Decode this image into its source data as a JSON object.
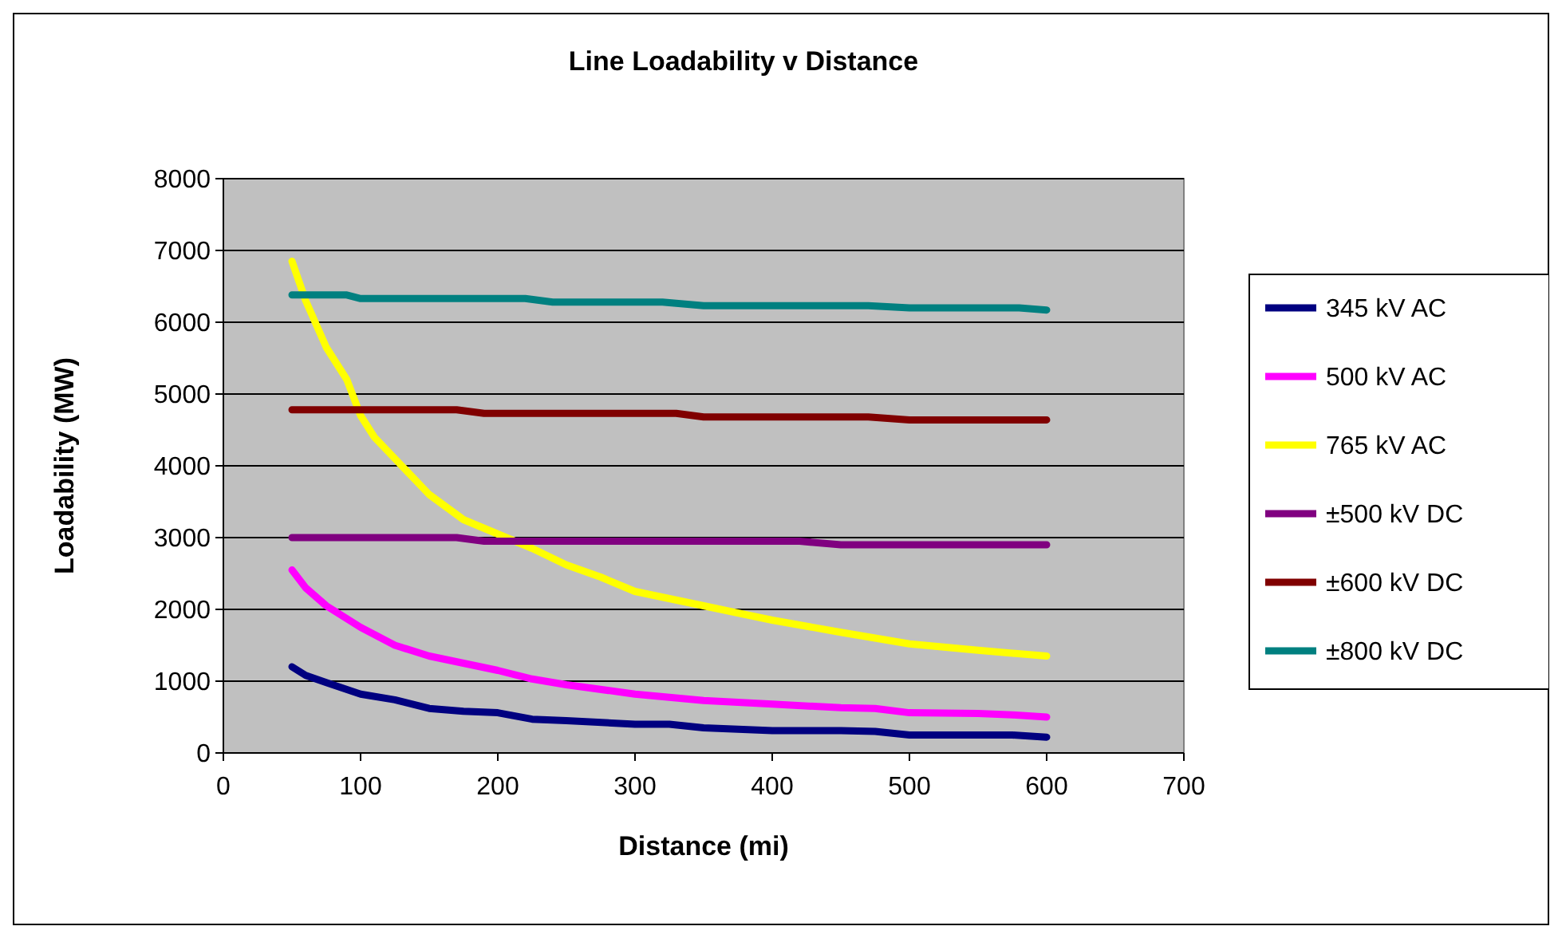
{
  "chart_data": {
    "type": "line",
    "title": "Line Loadability v Distance",
    "xlabel": "Distance (mi)",
    "ylabel": "Loadability (MW)",
    "xlim": [
      0,
      700
    ],
    "xticks": [
      0,
      100,
      200,
      300,
      400,
      500,
      600,
      700
    ],
    "ylim": [
      0,
      8000
    ],
    "yticks": [
      0,
      1000,
      2000,
      3000,
      4000,
      5000,
      6000,
      7000,
      8000
    ],
    "grid": "y",
    "legend": "right",
    "marker": "none",
    "line_style": "solid",
    "series": [
      {
        "name": "345 kV AC",
        "color": "#000080",
        "x": [
          50,
          60,
          75,
          100,
          125,
          150,
          175,
          200,
          225,
          250,
          300,
          325,
          350,
          400,
          450,
          475,
          500,
          550,
          575,
          600
        ],
        "values": [
          1200,
          1080,
          980,
          820,
          740,
          620,
          580,
          560,
          470,
          450,
          400,
          400,
          350,
          310,
          310,
          300,
          250,
          250,
          250,
          220
        ]
      },
      {
        "name": "500 kV AC",
        "color": "#ff00ff",
        "x": [
          50,
          60,
          75,
          100,
          125,
          150,
          175,
          200,
          225,
          250,
          300,
          350,
          400,
          450,
          475,
          500,
          550,
          575,
          600
        ],
        "values": [
          2550,
          2300,
          2050,
          1750,
          1500,
          1350,
          1250,
          1150,
          1030,
          950,
          820,
          730,
          680,
          630,
          620,
          560,
          550,
          530,
          500
        ]
      },
      {
        "name": "765 kV AC",
        "color": "#ffff00",
        "x": [
          50,
          60,
          75,
          90,
          100,
          110,
          125,
          150,
          175,
          200,
          225,
          250,
          275,
          300,
          350,
          400,
          450,
          500,
          550,
          600
        ],
        "values": [
          6850,
          6300,
          5650,
          5200,
          4700,
          4400,
          4100,
          3600,
          3250,
          3050,
          2850,
          2620,
          2450,
          2250,
          2050,
          1850,
          1680,
          1520,
          1430,
          1350
        ]
      },
      {
        "name": "±500 kV DC",
        "color": "#800080",
        "x": [
          50,
          170,
          190,
          420,
          450,
          600
        ],
        "values": [
          3000,
          3000,
          2950,
          2950,
          2900,
          2900
        ]
      },
      {
        "name": "±600 kV DC",
        "color": "#800000",
        "x": [
          50,
          170,
          190,
          330,
          350,
          470,
          500,
          600
        ],
        "values": [
          4780,
          4780,
          4730,
          4730,
          4680,
          4680,
          4640,
          4640
        ]
      },
      {
        "name": "±800 kV DC",
        "color": "#008080",
        "x": [
          50,
          90,
          100,
          220,
          240,
          320,
          350,
          470,
          500,
          580,
          600
        ],
        "values": [
          6380,
          6380,
          6330,
          6330,
          6280,
          6280,
          6230,
          6230,
          6200,
          6200,
          6170
        ]
      }
    ]
  }
}
